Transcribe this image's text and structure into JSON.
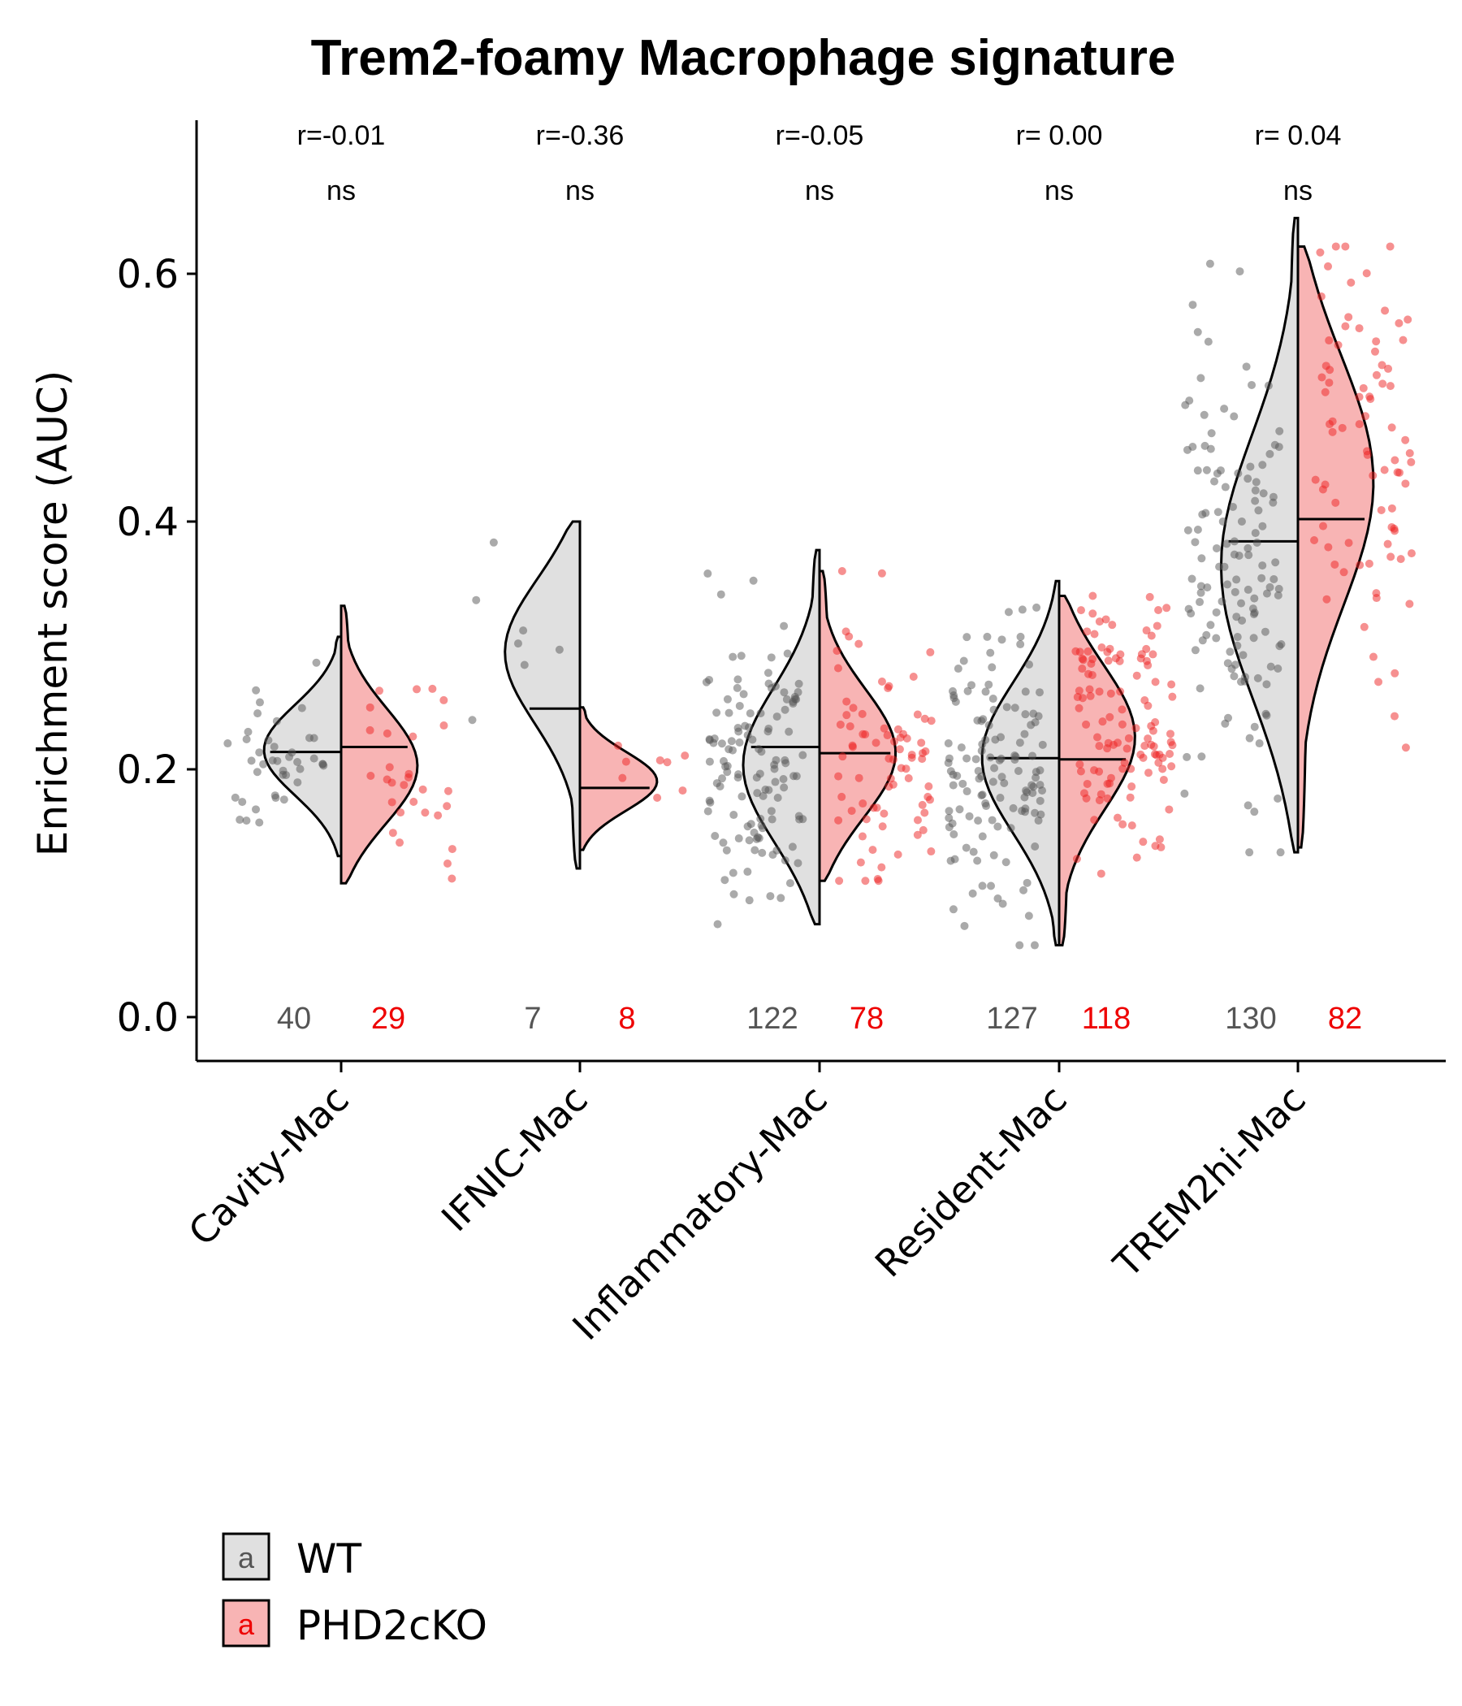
{
  "chart_data": {
    "type": "split-violin",
    "title": "Trem2-foamy Macrophage signature",
    "ylabel": "Enrichment score (AUC)",
    "xlabel": "",
    "ylim": [
      -0.04,
      0.73
    ],
    "yticks": [
      0.0,
      0.2,
      0.4,
      0.6
    ],
    "ytick_labels": [
      "0.0",
      "0.2",
      "0.4",
      "0.6"
    ],
    "categories": [
      "Cavity-Mac",
      "IFNIC-Mac",
      "Inflammatory-Mac",
      "Resident-Mac",
      "TREM2hi-Mac"
    ],
    "series": [
      {
        "name": "WT",
        "fill": "#e0e0e0",
        "point_color": "#555555",
        "counts": [
          "40",
          "7",
          "122",
          "127",
          "130"
        ],
        "medians": [
          0.214,
          0.249,
          0.218,
          0.209,
          0.384
        ],
        "ranges": [
          [
            0.13,
            0.307
          ],
          [
            0.12,
            0.4
          ],
          [
            0.075,
            0.377
          ],
          [
            0.058,
            0.352
          ],
          [
            0.133,
            0.645
          ]
        ],
        "density_modes": [
          0.215,
          0.3,
          0.2,
          0.21,
          0.36
        ]
      },
      {
        "name": "PHD2cKO",
        "fill": "#f8b4b4",
        "point_color": "#ee2222",
        "counts": [
          "29",
          "8",
          "78",
          "118",
          "82"
        ],
        "medians": [
          0.218,
          0.185,
          0.213,
          0.208,
          0.402
        ],
        "ranges": [
          [
            0.108,
            0.332
          ],
          [
            0.135,
            0.25
          ],
          [
            0.11,
            0.36
          ],
          [
            0.058,
            0.34
          ],
          [
            0.137,
            0.622
          ]
        ],
        "density_modes": [
          0.2,
          0.19,
          0.21,
          0.23,
          0.44
        ]
      }
    ],
    "annotations": {
      "r_values": [
        "r=-0.01",
        "r=-0.36",
        "r=-0.05",
        "r= 0.00",
        "r= 0.04"
      ],
      "significance": [
        "ns",
        "ns",
        "ns",
        "ns",
        "ns"
      ]
    },
    "legend": {
      "position": "bottom-left",
      "key_letter": "a",
      "items": [
        "WT",
        "PHD2cKO"
      ]
    },
    "colors": {
      "wt_fill": "#e0e0e0",
      "ko_fill": "#f8b4b4",
      "wt_text": "#555555",
      "ko_text": "#ee0000",
      "outline": "#000000"
    }
  }
}
